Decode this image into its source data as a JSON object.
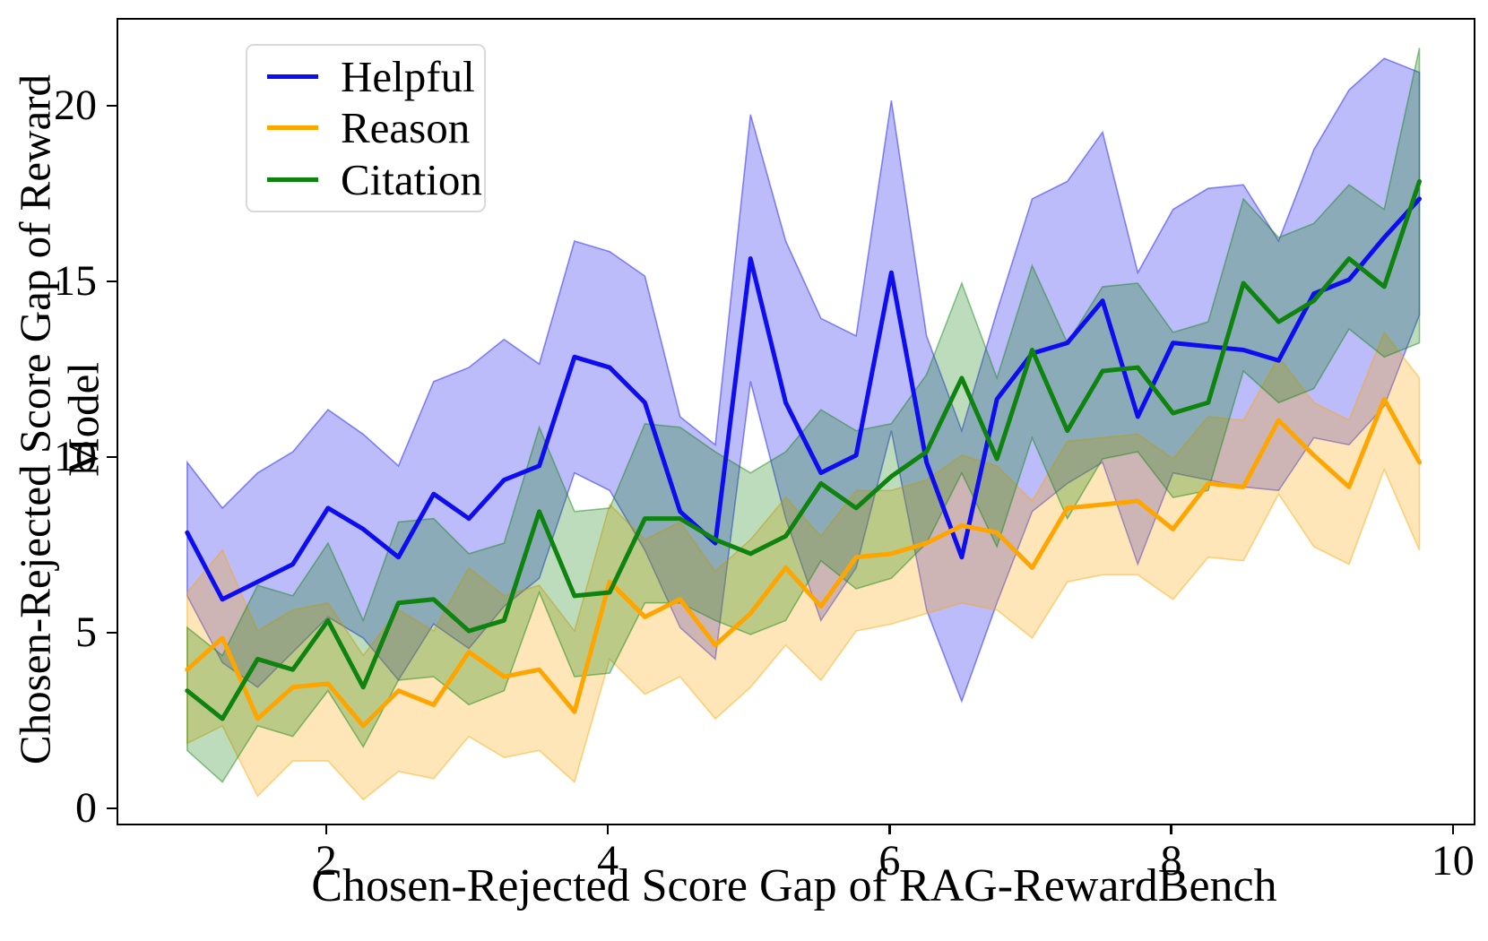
{
  "chart_data": {
    "type": "line",
    "title": "",
    "xlabel": "Chosen-Rejected Score Gap of RAG-RewardBench",
    "ylabel": "Chosen-Rejected Score Gap of Reward Model",
    "xlim": [
      0.511,
      10.135
    ],
    "ylim": [
      -0.383,
      22.5
    ],
    "xticks": [
      "2",
      "4",
      "6",
      "8",
      "10"
    ],
    "yticks": [
      "0",
      "5",
      "10",
      "15",
      "20"
    ],
    "grid": false,
    "legend_position": "upper left",
    "band_fill_alpha": 0.28,
    "band_edge_alpha": 0.45,
    "x": [
      1,
      1.25,
      1.5,
      1.75,
      2,
      2.25,
      2.5,
      2.75,
      3,
      3.25,
      3.5,
      3.75,
      4,
      4.25,
      4.5,
      4.75,
      5,
      5.25,
      5.5,
      5.75,
      6,
      6.25,
      6.5,
      6.75,
      7,
      7.25,
      7.5,
      7.75,
      8,
      8.25,
      8.5,
      8.75,
      9,
      9.25,
      9.5,
      9.75
    ],
    "series": [
      {
        "name": "Helpful",
        "color": "#0d0df0",
        "values": [
          7.9,
          6.0,
          6.5,
          7.0,
          8.6,
          8.0,
          7.2,
          9.0,
          8.3,
          9.4,
          9.8,
          12.9,
          12.6,
          11.6,
          8.5,
          7.6,
          15.7,
          11.6,
          9.6,
          10.1,
          15.3,
          9.9,
          7.2,
          11.7,
          13.0,
          13.3,
          14.5,
          11.2,
          13.3,
          13.2,
          13.1,
          12.8,
          14.7,
          15.1,
          16.3,
          17.4
        ],
        "upper": [
          9.9,
          8.6,
          9.6,
          10.2,
          11.4,
          10.7,
          9.8,
          12.2,
          12.6,
          13.4,
          12.7,
          16.2,
          15.9,
          15.2,
          11.2,
          10.4,
          19.8,
          16.2,
          14.0,
          13.5,
          20.2,
          13.5,
          10.8,
          14.2,
          17.4,
          17.9,
          19.3,
          15.3,
          17.1,
          17.7,
          17.8,
          16.2,
          18.8,
          20.5,
          21.4,
          21.0
        ],
        "lower": [
          6.1,
          4.2,
          3.5,
          4.5,
          5.5,
          4.9,
          3.7,
          5.3,
          4.6,
          5.8,
          6.6,
          9.6,
          9.1,
          7.4,
          5.2,
          4.3,
          12.2,
          8.3,
          5.4,
          6.9,
          10.8,
          5.7,
          3.1,
          5.9,
          8.5,
          9.3,
          9.9,
          7.0,
          9.6,
          9.4,
          9.2,
          9.1,
          10.6,
          10.4,
          11.5,
          14.1
        ]
      },
      {
        "name": "Reason",
        "color": "#ffa500",
        "values": [
          4.0,
          4.9,
          2.6,
          3.5,
          3.6,
          2.4,
          3.4,
          3.0,
          4.5,
          3.8,
          4.0,
          2.8,
          6.5,
          5.5,
          6.0,
          4.7,
          5.6,
          6.9,
          5.8,
          7.2,
          7.3,
          7.6,
          8.1,
          7.9,
          6.9,
          8.6,
          8.7,
          8.8,
          8.0,
          9.3,
          9.2,
          11.1,
          10.1,
          9.2,
          11.7,
          9.9
        ],
        "upper": [
          6.2,
          7.4,
          5.1,
          5.7,
          5.9,
          4.4,
          5.7,
          5.1,
          6.9,
          6.1,
          6.4,
          5.1,
          8.7,
          7.7,
          8.2,
          6.8,
          7.7,
          8.9,
          7.8,
          9.1,
          9.1,
          9.4,
          10.1,
          9.8,
          8.8,
          10.5,
          10.6,
          10.7,
          10.0,
          11.2,
          11.1,
          12.9,
          11.6,
          11.1,
          13.6,
          12.3
        ],
        "lower": [
          1.9,
          2.4,
          0.4,
          1.4,
          1.4,
          0.3,
          1.1,
          0.9,
          2.1,
          1.5,
          1.7,
          0.8,
          4.3,
          3.3,
          3.8,
          2.6,
          3.5,
          4.7,
          3.7,
          5.1,
          5.3,
          5.6,
          5.9,
          5.7,
          4.9,
          6.5,
          6.7,
          6.7,
          6.0,
          7.2,
          7.1,
          9.0,
          7.5,
          7.0,
          9.7,
          7.4
        ]
      },
      {
        "name": "Citation",
        "color": "#0f830f",
        "values": [
          3.4,
          2.6,
          4.3,
          4.0,
          5.4,
          3.5,
          5.9,
          6.0,
          5.1,
          5.4,
          8.5,
          6.1,
          6.2,
          8.3,
          8.3,
          7.7,
          7.3,
          7.8,
          9.3,
          8.6,
          9.5,
          10.2,
          12.3,
          10.0,
          13.1,
          10.8,
          12.5,
          12.6,
          11.3,
          11.6,
          15.0,
          13.9,
          14.5,
          15.7,
          14.9,
          17.9
        ],
        "upper": [
          5.2,
          4.4,
          6.4,
          6.1,
          7.6,
          5.4,
          8.2,
          8.3,
          7.3,
          7.6,
          10.9,
          8.5,
          8.6,
          11.0,
          10.9,
          10.2,
          9.6,
          10.2,
          11.4,
          10.8,
          11.0,
          12.4,
          15.0,
          12.3,
          15.5,
          13.3,
          14.9,
          15.0,
          13.6,
          13.9,
          17.4,
          16.3,
          16.7,
          17.8,
          17.1,
          21.7
        ],
        "lower": [
          1.7,
          0.8,
          2.4,
          2.1,
          3.4,
          1.8,
          3.7,
          3.8,
          3.0,
          3.4,
          6.2,
          3.8,
          3.9,
          5.9,
          5.9,
          5.4,
          5.0,
          5.4,
          7.1,
          6.3,
          6.6,
          7.6,
          9.6,
          7.5,
          10.6,
          8.3,
          10.0,
          10.2,
          8.9,
          9.1,
          12.5,
          11.6,
          12.0,
          13.7,
          12.9,
          13.3
        ]
      }
    ]
  }
}
